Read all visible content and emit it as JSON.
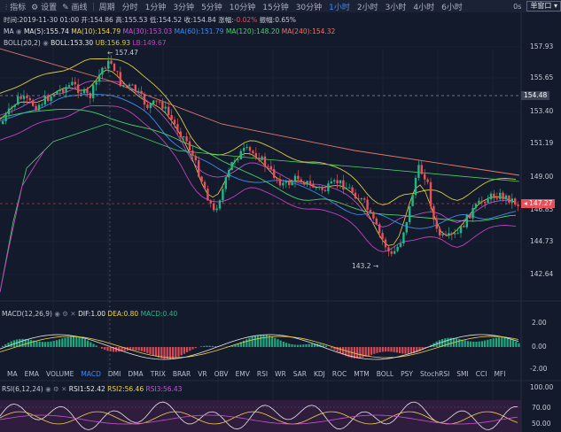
{
  "toolbar": {
    "indicators": "指标",
    "settings": "设置",
    "draw": "画线",
    "period": "周期",
    "intervals": [
      "分时",
      "1分钟",
      "3分钟",
      "5分钟",
      "10分钟",
      "15分钟",
      "30分钟",
      "1小时",
      "2小时",
      "3小时",
      "4小时",
      "6小时"
    ],
    "active_interval": "1小时",
    "right_label": "0s",
    "window_button": "单窗口"
  },
  "candle_info": {
    "time": "时间:2019-11-30 01:00",
    "open": "开:154.86",
    "high": "高:155.53",
    "low": "低:154.52",
    "close": "收:154.84",
    "change_label": "涨幅:",
    "change_value": "-0.02%",
    "amplitude": "振幅:0.65%"
  },
  "ma_line": {
    "label": "MA",
    "ma5": "MA(5):155.74",
    "ma10": "MA(10):154.79",
    "ma30": "MA(30):153.03",
    "ma60": "MA(60):151.79",
    "ma120": "MA(120):148.20",
    "ma240": "MA(240):154.32"
  },
  "boll_line": {
    "label": "BOLL(20,2)",
    "mid": "BOLL:153.30",
    "ub": "UB:156.93",
    "lb": "LB:149.67"
  },
  "price_axis": [
    "157.93",
    "155.65",
    "153.40",
    "151.19",
    "149.00",
    "146.85",
    "144.73",
    "142.64"
  ],
  "price_tags": {
    "crosshair": "154.48",
    "last": "147.27"
  },
  "annotations": {
    "high": "157.47",
    "low": "143.2"
  },
  "macd": {
    "label": "MACD(12,26,9)",
    "dif": "DIF:1.00",
    "dea": "DEA:0.80",
    "macd": "MACD:0.40",
    "axis": [
      "2.00",
      "0.00",
      "-2.00"
    ]
  },
  "indicator_tabs": [
    "MA",
    "EMA",
    "VOLUME",
    "MACD",
    "DMI",
    "DMA",
    "TRIX",
    "BRAR",
    "VR",
    "OBV",
    "EMV",
    "RSI",
    "WR",
    "SAR",
    "KDJ",
    "ROC",
    "MTM",
    "BOLL",
    "PSY",
    "StochRSI",
    "SMI",
    "CCI",
    "MFI"
  ],
  "active_indicator": "MACD",
  "rsi": {
    "label": "RSI(6,12,24)",
    "rsi1": "RSI1:52.42",
    "rsi2": "RSI2:56.46",
    "rsi3": "RSI3:56.43",
    "axis": [
      "100.00",
      "70.00",
      "50.00"
    ]
  },
  "colors": {
    "bg": "#131a2b",
    "up": "#1fb888",
    "down": "#e8505b",
    "ma5": "#e9e9e9",
    "ma10": "#f2d34a",
    "ma30": "#c754d4",
    "ma60": "#3f8df0",
    "ma120": "#4dd06a",
    "ma240": "#e37b6b",
    "boll_ub": "#d9cc3f",
    "boll_lb": "#c540c0",
    "accent": "#3d8bfd"
  }
}
